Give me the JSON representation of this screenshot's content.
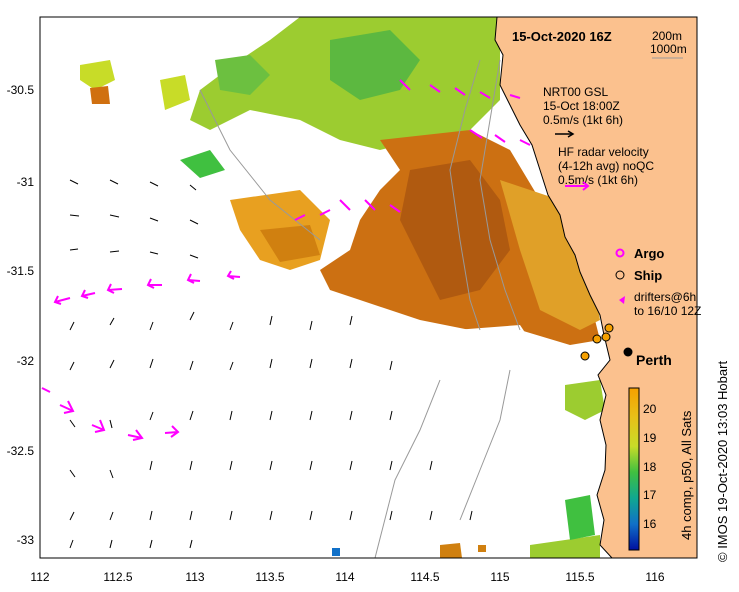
{
  "map": {
    "title": "15-Oct-2020 16Z",
    "bathymetry_legend": [
      "200m",
      "1000m"
    ],
    "longitude_ticks": [
      "112",
      "112.5",
      "113",
      "113.5",
      "114",
      "114.5",
      "115",
      "115.5",
      "116"
    ],
    "latitude_ticks": [
      "-30.5",
      "-31",
      "-31.5",
      "-32",
      "-32.5",
      "-33"
    ],
    "current_legend": {
      "model_lines": [
        "NRT00 GSL",
        "15-Oct 18:00Z",
        "0.5m/s (1kt 6h)"
      ],
      "radar_lines": [
        "HF radar velocity",
        "(4-12h avg) noQC",
        "0.5m/s (1kt 6h)"
      ]
    },
    "markers": {
      "argo": "Argo",
      "ship": "Ship",
      "drifters": [
        "drifters@6h",
        "to 16/10 12Z"
      ]
    },
    "city": "Perth",
    "colorbar": {
      "label": "4h comp, p50, All Sats",
      "ticks": [
        "20",
        "19",
        "18",
        "17",
        "16"
      ],
      "stops": [
        "#f5a000",
        "#e8c018",
        "#c8dc28",
        "#40c040",
        "#10a890",
        "#1070c8",
        "#0010a0"
      ]
    },
    "credit": "© IMOS 19-Oct-2020 13:03 Hobart",
    "land_color": "#fbc18e",
    "radar_color": "#ff00ff"
  }
}
